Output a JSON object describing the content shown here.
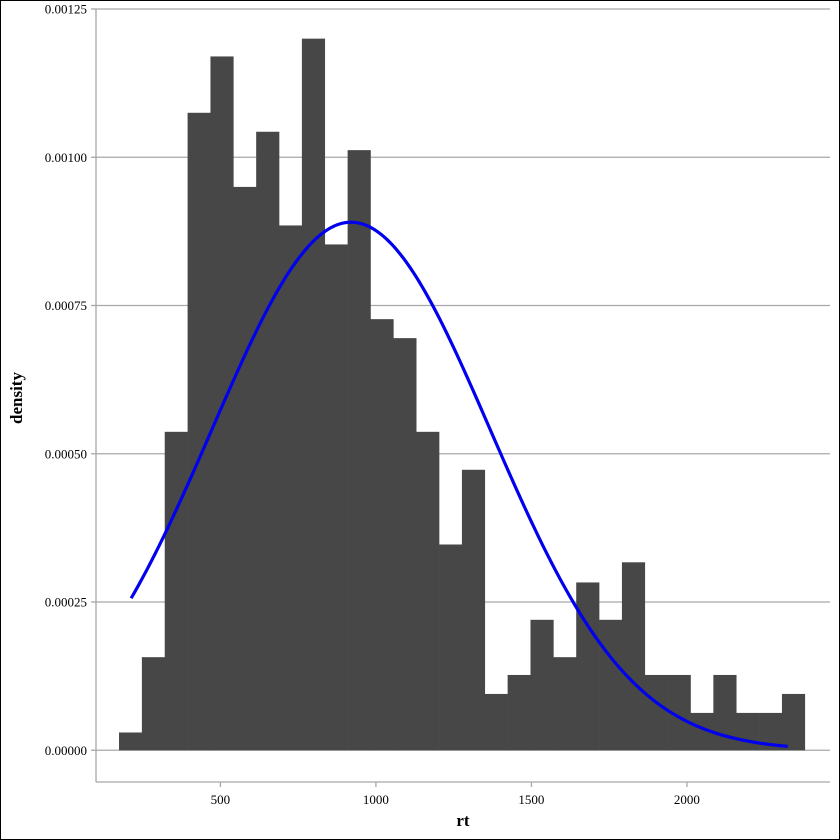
{
  "chart_data": {
    "type": "bar",
    "xlabel": "rt",
    "ylabel": "density",
    "xlim": [
      100,
      2460
    ],
    "ylim": [
      -5.35e-05,
      0.00125
    ],
    "x_ticks": [
      500,
      1000,
      1500,
      2000
    ],
    "x_tick_labels": [
      "500",
      "1000",
      "1500",
      "2000"
    ],
    "y_ticks": [
      0.0,
      0.00025,
      0.0005,
      0.00075,
      0.001,
      0.00125
    ],
    "y_tick_labels": [
      "0.00000",
      "0.00025",
      "0.00050",
      "0.00075",
      "0.00100",
      "0.00125"
    ],
    "grid": true,
    "bin_width": 73.5,
    "bins_start": 174,
    "values": [
      3e-05,
      0.000157,
      0.000537,
      0.001075,
      0.00117,
      0.00095,
      0.001043,
      0.000885,
      0.0012,
      0.000853,
      0.001012,
      0.000727,
      0.000695,
      0.000537,
      0.000347,
      0.000473,
      9.5e-05,
      0.000127,
      0.00022,
      0.000157,
      0.000283,
      0.00022,
      0.000317,
      0.000127,
      0.000127,
      6.3e-05,
      0.000127,
      6.3e-05,
      6.3e-05,
      9.5e-05
    ],
    "curve": {
      "type": "normal-density",
      "mean": 920,
      "sd": 448,
      "x_range": [
        213,
        2324
      ]
    },
    "colors": {
      "bars": "#474747",
      "curve": "#0000ee",
      "grid": "#a8a8a8",
      "axis": "#a8a8a8"
    }
  }
}
